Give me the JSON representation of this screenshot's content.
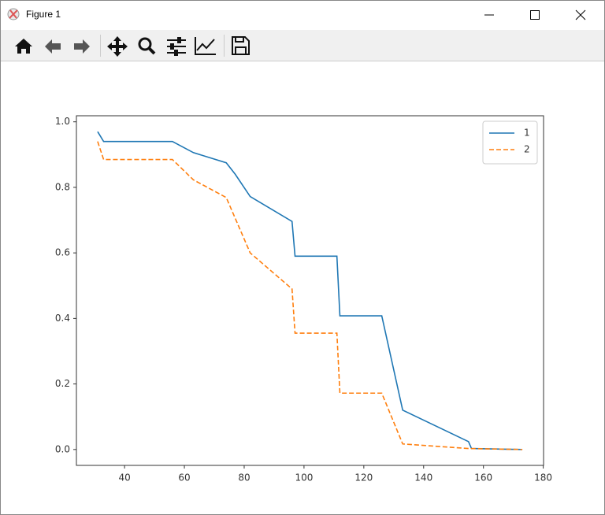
{
  "window": {
    "title": "Figure 1"
  },
  "chart_data": {
    "type": "line",
    "series": [
      {
        "name": "1",
        "color": "#1f77b4",
        "dash": "solid",
        "x": [
          31,
          33,
          56,
          63,
          74,
          77,
          82,
          96,
          97,
          111,
          112,
          126,
          133,
          155,
          156,
          173
        ],
        "values": [
          0.97,
          0.94,
          0.94,
          0.906,
          0.875,
          0.84,
          0.772,
          0.696,
          0.59,
          0.59,
          0.408,
          0.408,
          0.12,
          0.024,
          0.003,
          0.0
        ]
      },
      {
        "name": "2",
        "color": "#ff7f0e",
        "dash": "dashed",
        "x": [
          31,
          33,
          56,
          63,
          74,
          82,
          96,
          97,
          111,
          112,
          126,
          133,
          155,
          173
        ],
        "values": [
          0.94,
          0.885,
          0.885,
          0.823,
          0.769,
          0.6,
          0.49,
          0.355,
          0.355,
          0.172,
          0.172,
          0.017,
          0.003,
          0.0
        ]
      }
    ],
    "xlim": [
      23.9,
      180.1
    ],
    "ylim": [
      -0.0485,
      1.0185
    ],
    "xticks": [
      40,
      60,
      80,
      100,
      120,
      140,
      160,
      180
    ],
    "yticks": [
      {
        "value": 0,
        "label": "0.0"
      },
      {
        "value": 0.2,
        "label": "0.2"
      },
      {
        "value": 0.4,
        "label": "0.4"
      },
      {
        "value": 0.6,
        "label": "0.6"
      },
      {
        "value": 0.8,
        "label": "0.8"
      },
      {
        "value": 1,
        "label": "1.0"
      }
    ],
    "legend": "upper right",
    "grid": false
  }
}
